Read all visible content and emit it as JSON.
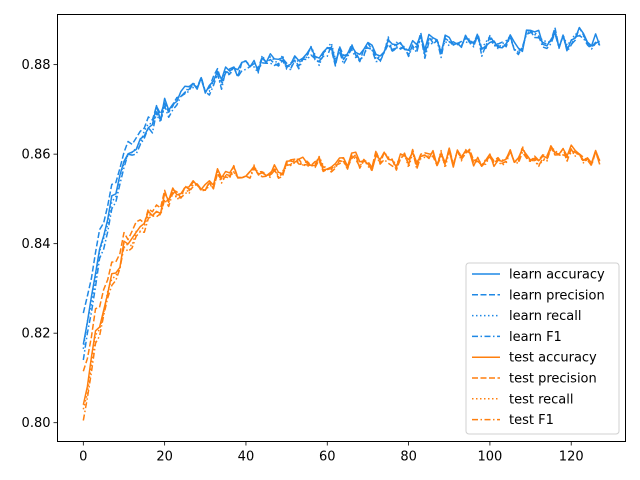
{
  "chart_data": {
    "type": "line",
    "title": "",
    "xlabel": "",
    "ylabel": "",
    "xlim": [
      -6.35,
      133.35
    ],
    "ylim": [
      0.7958,
      0.8912
    ],
    "x_ticks": [
      0,
      20,
      40,
      60,
      80,
      100,
      120
    ],
    "y_ticks": [
      0.8,
      0.82,
      0.84,
      0.86,
      0.88
    ],
    "x_tick_labels": [
      "0",
      "20",
      "40",
      "60",
      "80",
      "100",
      "120"
    ],
    "y_tick_labels": [
      "0.80",
      "0.82",
      "0.84",
      "0.86",
      "0.88"
    ],
    "grid": false,
    "legend_position": "lower-right",
    "x": {
      "start": 0,
      "end": 127,
      "step": 1
    },
    "colors": {
      "learn": "#1f88e5",
      "test": "#ff7f0e"
    },
    "series": [
      {
        "name": "learn accuracy",
        "group": "learn",
        "dash": "solid",
        "start": 0.8175,
        "plateau": 0.8868,
        "rate": 0.12,
        "rise": 0.0195,
        "rise_rate": 0.025,
        "noise": 0.0015,
        "seed": 1
      },
      {
        "name": "learn precision",
        "group": "learn",
        "dash": "dashed",
        "start": 0.8245,
        "plateau": 0.8866,
        "rate": 0.12,
        "rise": 0.0195,
        "rise_rate": 0.025,
        "noise": 0.0015,
        "seed": 2
      },
      {
        "name": "learn recall",
        "group": "learn",
        "dash": "dotted",
        "start": 0.8165,
        "plateau": 0.8865,
        "rate": 0.12,
        "rise": 0.0195,
        "rise_rate": 0.025,
        "noise": 0.0015,
        "seed": 3
      },
      {
        "name": "learn F1",
        "group": "learn",
        "dash": "dashdot",
        "start": 0.814,
        "plateau": 0.8862,
        "rate": 0.12,
        "rise": 0.0195,
        "rise_rate": 0.025,
        "noise": 0.0015,
        "seed": 4
      },
      {
        "name": "test accuracy",
        "group": "test",
        "dash": "solid",
        "start": 0.804,
        "plateau": 0.8605,
        "rate": 0.13,
        "rise": 0.0135,
        "rise_rate": 0.028,
        "noise": 0.0013,
        "seed": 5
      },
      {
        "name": "test precision",
        "group": "test",
        "dash": "dashed",
        "start": 0.8115,
        "plateau": 0.8603,
        "rate": 0.13,
        "rise": 0.0135,
        "rise_rate": 0.028,
        "noise": 0.0013,
        "seed": 6
      },
      {
        "name": "test recall",
        "group": "test",
        "dash": "dotted",
        "start": 0.803,
        "plateau": 0.8602,
        "rate": 0.13,
        "rise": 0.0135,
        "rise_rate": 0.028,
        "noise": 0.0013,
        "seed": 7
      },
      {
        "name": "test F1",
        "group": "test",
        "dash": "dashdot",
        "start": 0.8005,
        "plateau": 0.86,
        "rate": 0.13,
        "rise": 0.0135,
        "rise_rate": 0.028,
        "noise": 0.0013,
        "seed": 8
      }
    ]
  }
}
